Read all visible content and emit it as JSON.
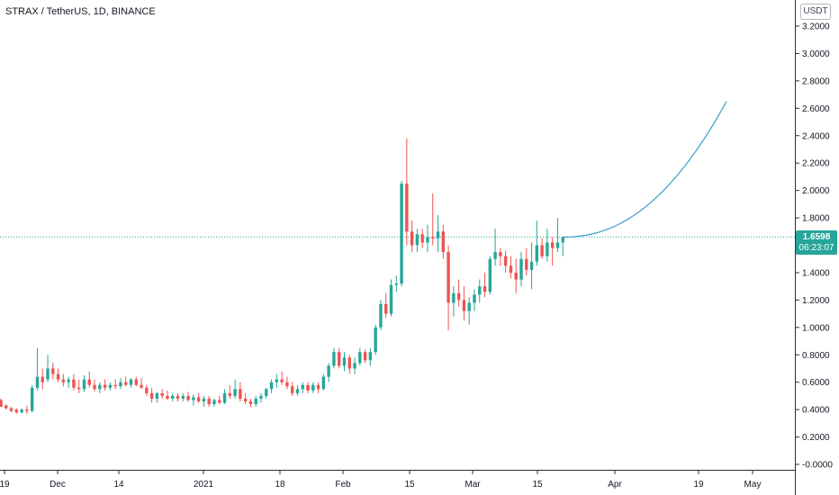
{
  "symbol_title": "STRAX / TetherUS, 1D, BINANCE",
  "currency": "USDT",
  "last_price": "1.6598",
  "countdown": "06:23:07",
  "colors": {
    "up": "#26a69a",
    "down": "#ef5350",
    "projection": "#3a9ecb",
    "price_line": "#26a69a"
  },
  "chart_data": {
    "type": "candlestick",
    "title": "STRAX / TetherUS, 1D, BINANCE",
    "y_ticks": [
      "-0.0000",
      "0.2000",
      "0.4000",
      "0.6000",
      "0.8000",
      "1.0000",
      "1.2000",
      "1.4000",
      "1.6000",
      "1.8000",
      "2.0000",
      "2.2000",
      "2.4000",
      "2.6000",
      "2.8000",
      "3.0000",
      "3.2000"
    ],
    "ylim": [
      -0.02,
      3.35
    ],
    "x_ticks": [
      "19",
      "Dec",
      "14",
      "2021",
      "18",
      "Feb",
      "15",
      "Mar",
      "15",
      "Apr",
      "19",
      "May"
    ],
    "candles": [
      [
        0.47,
        0.48,
        0.42,
        0.42
      ],
      [
        0.43,
        0.44,
        0.4,
        0.41
      ],
      [
        0.41,
        0.42,
        0.38,
        0.39
      ],
      [
        0.4,
        0.41,
        0.37,
        0.38
      ],
      [
        0.38,
        0.41,
        0.37,
        0.4
      ],
      [
        0.4,
        0.43,
        0.37,
        0.39
      ],
      [
        0.39,
        0.58,
        0.38,
        0.56
      ],
      [
        0.56,
        0.85,
        0.54,
        0.64
      ],
      [
        0.64,
        0.7,
        0.55,
        0.6
      ],
      [
        0.62,
        0.8,
        0.6,
        0.7
      ],
      [
        0.7,
        0.74,
        0.62,
        0.66
      ],
      [
        0.66,
        0.7,
        0.6,
        0.62
      ],
      [
        0.62,
        0.66,
        0.57,
        0.6
      ],
      [
        0.6,
        0.64,
        0.56,
        0.62
      ],
      [
        0.62,
        0.66,
        0.54,
        0.56
      ],
      [
        0.56,
        0.62,
        0.52,
        0.55
      ],
      [
        0.55,
        0.65,
        0.53,
        0.62
      ],
      [
        0.62,
        0.68,
        0.56,
        0.58
      ],
      [
        0.58,
        0.62,
        0.53,
        0.55
      ],
      [
        0.55,
        0.6,
        0.52,
        0.58
      ],
      [
        0.58,
        0.62,
        0.54,
        0.56
      ],
      [
        0.56,
        0.6,
        0.54,
        0.58
      ],
      [
        0.58,
        0.62,
        0.55,
        0.57
      ],
      [
        0.57,
        0.63,
        0.55,
        0.6
      ],
      [
        0.6,
        0.64,
        0.57,
        0.58
      ],
      [
        0.58,
        0.63,
        0.56,
        0.62
      ],
      [
        0.62,
        0.64,
        0.57,
        0.58
      ],
      [
        0.58,
        0.63,
        0.55,
        0.56
      ],
      [
        0.56,
        0.58,
        0.5,
        0.52
      ],
      [
        0.52,
        0.56,
        0.45,
        0.48
      ],
      [
        0.48,
        0.53,
        0.45,
        0.52
      ],
      [
        0.52,
        0.55,
        0.48,
        0.5
      ],
      [
        0.5,
        0.54,
        0.47,
        0.48
      ],
      [
        0.48,
        0.52,
        0.46,
        0.5
      ],
      [
        0.5,
        0.52,
        0.46,
        0.48
      ],
      [
        0.48,
        0.52,
        0.46,
        0.5
      ],
      [
        0.5,
        0.53,
        0.46,
        0.47
      ],
      [
        0.47,
        0.51,
        0.43,
        0.49
      ],
      [
        0.49,
        0.52,
        0.45,
        0.46
      ],
      [
        0.46,
        0.5,
        0.42,
        0.48
      ],
      [
        0.48,
        0.5,
        0.42,
        0.44
      ],
      [
        0.44,
        0.48,
        0.42,
        0.47
      ],
      [
        0.47,
        0.5,
        0.44,
        0.45
      ],
      [
        0.45,
        0.55,
        0.44,
        0.52
      ],
      [
        0.52,
        0.58,
        0.48,
        0.5
      ],
      [
        0.5,
        0.62,
        0.48,
        0.55
      ],
      [
        0.55,
        0.6,
        0.46,
        0.48
      ],
      [
        0.48,
        0.52,
        0.44,
        0.46
      ],
      [
        0.46,
        0.48,
        0.42,
        0.44
      ],
      [
        0.44,
        0.5,
        0.42,
        0.48
      ],
      [
        0.48,
        0.52,
        0.45,
        0.5
      ],
      [
        0.5,
        0.56,
        0.48,
        0.55
      ],
      [
        0.55,
        0.62,
        0.52,
        0.6
      ],
      [
        0.6,
        0.66,
        0.56,
        0.62
      ],
      [
        0.62,
        0.68,
        0.58,
        0.6
      ],
      [
        0.6,
        0.64,
        0.55,
        0.57
      ],
      [
        0.57,
        0.6,
        0.5,
        0.52
      ],
      [
        0.52,
        0.58,
        0.5,
        0.55
      ],
      [
        0.55,
        0.6,
        0.52,
        0.58
      ],
      [
        0.58,
        0.6,
        0.52,
        0.54
      ],
      [
        0.54,
        0.6,
        0.52,
        0.58
      ],
      [
        0.58,
        0.6,
        0.52,
        0.55
      ],
      [
        0.55,
        0.66,
        0.54,
        0.64
      ],
      [
        0.64,
        0.74,
        0.6,
        0.72
      ],
      [
        0.72,
        0.85,
        0.7,
        0.82
      ],
      [
        0.82,
        0.85,
        0.7,
        0.72
      ],
      [
        0.72,
        0.82,
        0.68,
        0.78
      ],
      [
        0.78,
        0.8,
        0.66,
        0.7
      ],
      [
        0.7,
        0.78,
        0.66,
        0.74
      ],
      [
        0.74,
        0.85,
        0.72,
        0.82
      ],
      [
        0.82,
        0.84,
        0.74,
        0.76
      ],
      [
        0.76,
        0.85,
        0.72,
        0.82
      ],
      [
        0.82,
        1.02,
        0.8,
        1.0
      ],
      [
        1.0,
        1.2,
        0.98,
        1.17
      ],
      [
        1.17,
        1.25,
        1.07,
        1.1
      ],
      [
        1.1,
        1.35,
        1.08,
        1.31
      ],
      [
        1.31,
        1.38,
        1.26,
        1.32
      ],
      [
        1.32,
        2.07,
        1.3,
        2.05
      ],
      [
        2.05,
        2.38,
        1.6,
        1.7
      ],
      [
        1.7,
        1.78,
        1.55,
        1.6
      ],
      [
        1.6,
        1.72,
        1.55,
        1.68
      ],
      [
        1.68,
        1.72,
        1.58,
        1.62
      ],
      [
        1.62,
        1.75,
        1.55,
        1.66
      ],
      [
        1.66,
        1.98,
        1.6,
        1.65
      ],
      [
        1.65,
        1.82,
        1.55,
        1.7
      ],
      [
        1.7,
        1.75,
        1.5,
        1.55
      ],
      [
        1.55,
        1.6,
        0.98,
        1.18
      ],
      [
        1.18,
        1.3,
        1.08,
        1.25
      ],
      [
        1.25,
        1.35,
        1.15,
        1.2
      ],
      [
        1.2,
        1.3,
        1.05,
        1.12
      ],
      [
        1.12,
        1.22,
        1.02,
        1.18
      ],
      [
        1.18,
        1.28,
        1.12,
        1.24
      ],
      [
        1.24,
        1.35,
        1.18,
        1.3
      ],
      [
        1.3,
        1.4,
        1.22,
        1.26
      ],
      [
        1.26,
        1.52,
        1.24,
        1.5
      ],
      [
        1.5,
        1.72,
        1.45,
        1.55
      ],
      [
        1.55,
        1.58,
        1.45,
        1.52
      ],
      [
        1.52,
        1.56,
        1.4,
        1.45
      ],
      [
        1.45,
        1.52,
        1.36,
        1.4
      ],
      [
        1.4,
        1.5,
        1.25,
        1.35
      ],
      [
        1.35,
        1.55,
        1.3,
        1.5
      ],
      [
        1.5,
        1.58,
        1.38,
        1.42
      ],
      [
        1.42,
        1.62,
        1.28,
        1.48
      ],
      [
        1.48,
        1.78,
        1.45,
        1.6
      ],
      [
        1.6,
        1.65,
        1.5,
        1.52
      ],
      [
        1.52,
        1.72,
        1.48,
        1.62
      ],
      [
        1.62,
        1.66,
        1.45,
        1.58
      ],
      [
        1.58,
        1.8,
        1.55,
        1.62
      ],
      [
        1.62,
        1.66,
        1.52,
        1.66
      ]
    ],
    "projection": {
      "from": 1.66,
      "to": 2.65
    },
    "current_price": 1.6598
  }
}
